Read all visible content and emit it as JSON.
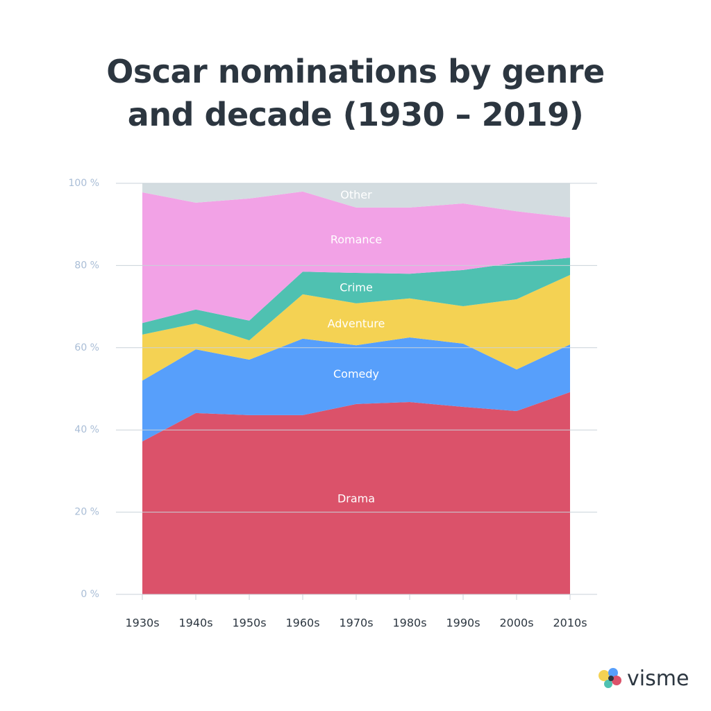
{
  "chart_data": {
    "type": "stacked_area",
    "title": "Oscar nominations by genre and decade (1930 – 2019)",
    "categories": [
      "1930s",
      "1940s",
      "1950s",
      "1960s",
      "1970s",
      "1980s",
      "1990s",
      "2000s",
      "2010s"
    ],
    "series": [
      {
        "name": "Drama",
        "color": "#db526a",
        "values": [
          37.2,
          44.1,
          43.6,
          43.6,
          46.3,
          46.8,
          45.6,
          44.6,
          49.2
        ]
      },
      {
        "name": "Comedy",
        "color": "#579ffb",
        "values": [
          14.8,
          15.5,
          13.5,
          18.6,
          14.3,
          15.7,
          15.4,
          10.1,
          11.6
        ]
      },
      {
        "name": "Adventure",
        "color": "#f4d253",
        "values": [
          11.2,
          6.3,
          4.7,
          10.8,
          10.2,
          9.5,
          9.1,
          17.1,
          16.9
        ]
      },
      {
        "name": "Crime",
        "color": "#4fc1b1",
        "values": [
          2.8,
          3.4,
          4.8,
          5.5,
          7.4,
          6.0,
          8.8,
          8.9,
          4.2
        ]
      },
      {
        "name": "Romance",
        "color": "#f2a2e6",
        "values": [
          31.8,
          26.0,
          29.7,
          19.5,
          15.9,
          16.1,
          16.2,
          12.5,
          9.8
        ]
      },
      {
        "name": "Other",
        "color": "#d3dce0",
        "values": [
          2.2,
          4.7,
          3.7,
          2.0,
          5.9,
          5.9,
          4.9,
          6.8,
          8.3
        ]
      }
    ],
    "ylim": [
      0,
      100
    ],
    "yticks": [
      {
        "value": 0,
        "label": "0 %"
      },
      {
        "value": 20,
        "label": "20 %"
      },
      {
        "value": 40,
        "label": "40 %"
      },
      {
        "value": 60,
        "label": "60 %"
      },
      {
        "value": 80,
        "label": "80 %"
      },
      {
        "value": 100,
        "label": "100 %"
      }
    ],
    "grid": true
  },
  "brand": "visme"
}
